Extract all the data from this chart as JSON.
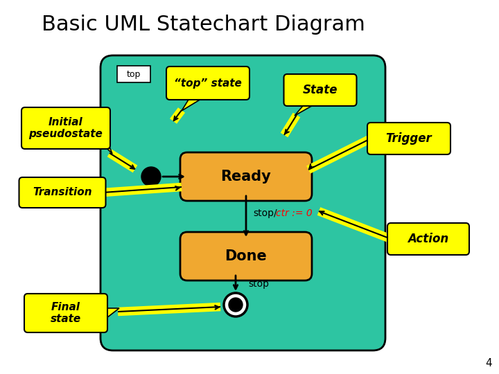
{
  "title": "Basic UML Statechart Diagram",
  "title_fontsize": 22,
  "bg_color": "#ffffff",
  "teal_color": "#2dc5a2",
  "orange_color": "#f0a830",
  "yellow_color": "#ffff00",
  "page_number": "4",
  "labels": {
    "initial_pseudostate": "Initial\npseudostate",
    "top_state": "“top” state",
    "state": "State",
    "trigger": "Trigger",
    "transition": "Transition",
    "action": "Action",
    "final_state": "Final\nstate",
    "top_label": "top",
    "ready": "Ready",
    "done": "Done",
    "stop_trigger": "stop/",
    "ctr_action": "ctr := 0",
    "stop_label": "stop"
  }
}
